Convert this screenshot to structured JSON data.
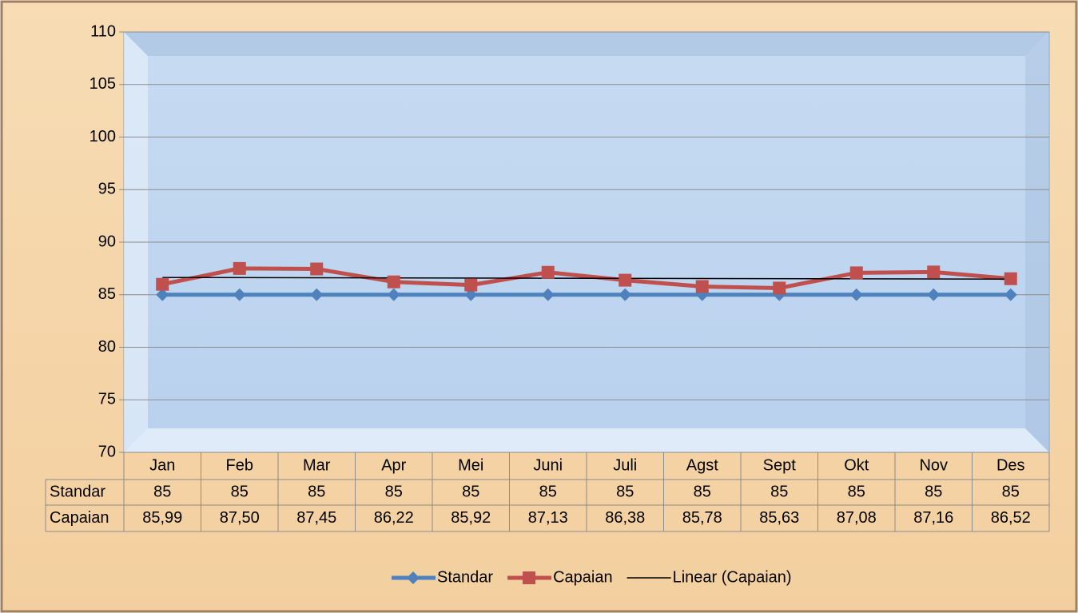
{
  "chart_data": {
    "type": "line",
    "categories": [
      "Jan",
      "Feb",
      "Mar",
      "Apr",
      "Mei",
      "Juni",
      "Juli",
      "Agst",
      "Sept",
      "Okt",
      "Nov",
      "Des"
    ],
    "series": [
      {
        "name": "Standar",
        "color": "#4f81bd",
        "marker": "diamond",
        "values": [
          85,
          85,
          85,
          85,
          85,
          85,
          85,
          85,
          85,
          85,
          85,
          85
        ]
      },
      {
        "name": "Capaian",
        "color": "#c0504d",
        "marker": "square",
        "values": [
          85.99,
          87.5,
          87.45,
          86.22,
          85.92,
          87.13,
          86.38,
          85.78,
          85.63,
          87.08,
          87.16,
          86.52
        ],
        "value_labels": [
          "85,99",
          "87,50",
          "87,45",
          "86,22",
          "85,92",
          "87,13",
          "86,38",
          "85,78",
          "85,63",
          "87,08",
          "87,16",
          "86,52"
        ]
      }
    ],
    "trendline": {
      "name": "Linear (Capaian)",
      "series": 1,
      "type": "linear",
      "color": "#000000"
    },
    "ylim": [
      70,
      110
    ],
    "yticks": [
      70,
      75,
      80,
      85,
      90,
      95,
      100,
      105,
      110
    ],
    "grid": true,
    "data_table": true,
    "legend": "bottom"
  }
}
